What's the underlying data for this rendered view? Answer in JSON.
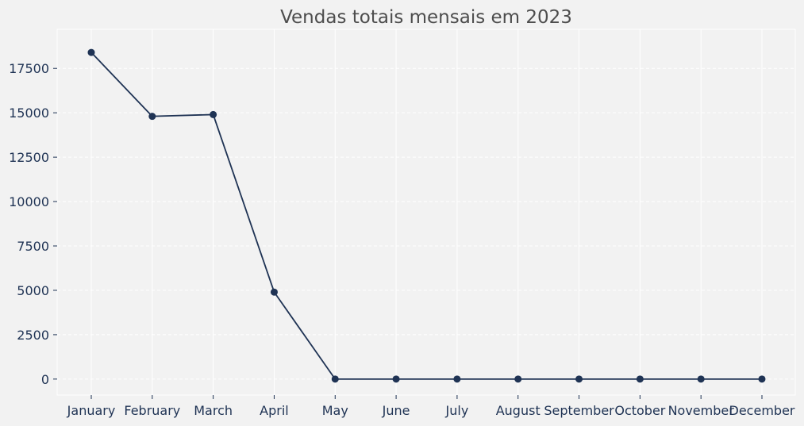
{
  "chart_data": {
    "type": "line",
    "title": "Vendas totais mensais em 2023",
    "xlabel": "",
    "ylabel": "",
    "categories": [
      "January",
      "February",
      "March",
      "April",
      "May",
      "June",
      "July",
      "August",
      "September",
      "October",
      "November",
      "December"
    ],
    "series": [
      {
        "values": [
          18400,
          14800,
          14900,
          4900,
          0,
          0,
          0,
          0,
          0,
          0,
          0,
          0
        ]
      }
    ],
    "ylim": [
      -900,
      19700
    ],
    "yticks": [
      0,
      2500,
      5000,
      7500,
      10000,
      12500,
      15000,
      17500
    ],
    "grid": true,
    "colors": {
      "line": "#1f3354",
      "marker": "#1f3354",
      "title": "#4d4d4d",
      "tick_label": "#1f3354",
      "grid": "#ffffff",
      "background": "#f2f2f2"
    }
  }
}
